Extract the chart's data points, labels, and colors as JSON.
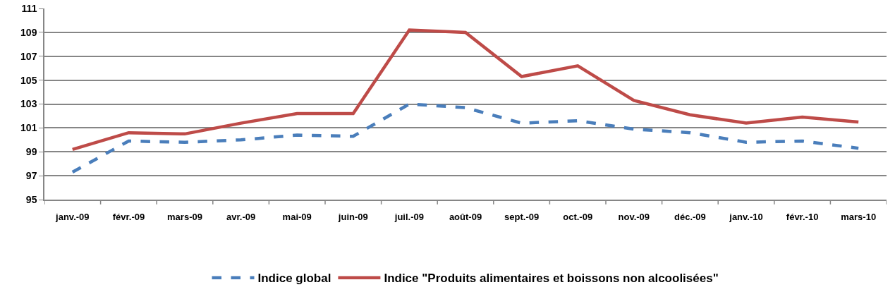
{
  "chart_data": {
    "type": "line",
    "categories": [
      "janv.-09",
      "févr.-09",
      "mars-09",
      "avr.-09",
      "mai-09",
      "juin-09",
      "juil.-09",
      "août-09",
      "sept.-09",
      "oct.-09",
      "nov.-09",
      "déc.-09",
      "janv.-10",
      "févr.-10",
      "mars-10"
    ],
    "series": [
      {
        "name": "Indice global",
        "color": "#4a7ebb",
        "line_style": "dashed",
        "values": [
          97.3,
          99.9,
          99.8,
          100.0,
          100.4,
          100.3,
          103.0,
          102.7,
          101.4,
          101.6,
          100.9,
          100.6,
          99.8,
          99.9,
          99.3
        ]
      },
      {
        "name": "Indice \"Produits alimentaires et boissons non alcoolisées\"",
        "color": "#be4b48",
        "line_style": "solid",
        "values": [
          99.2,
          100.6,
          100.5,
          101.4,
          102.2,
          102.2,
          109.2,
          109.0,
          105.3,
          106.2,
          103.3,
          102.1,
          101.4,
          101.9,
          101.5
        ]
      }
    ],
    "ylim": [
      95,
      111
    ],
    "yticks": [
      95,
      97,
      99,
      101,
      103,
      105,
      107,
      109,
      111
    ],
    "grid": "y",
    "legend": "bottom",
    "marker": "none"
  }
}
